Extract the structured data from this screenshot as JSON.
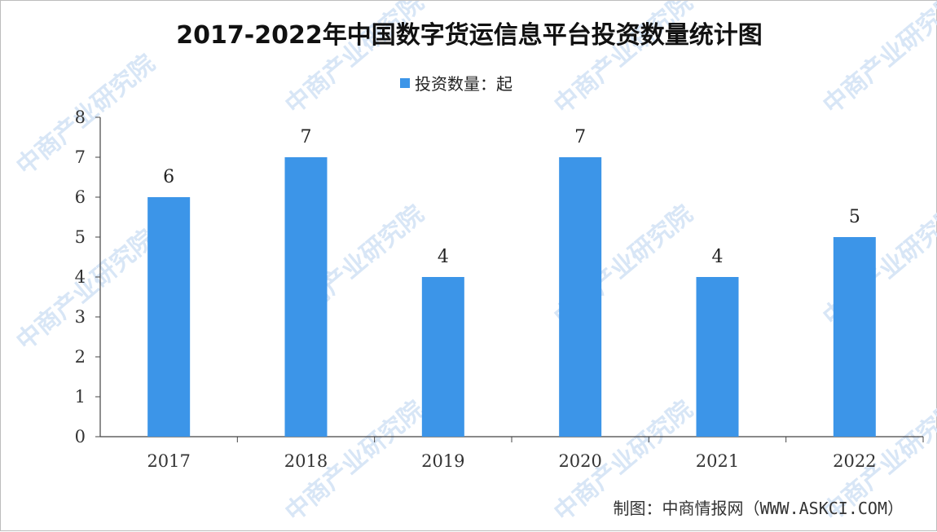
{
  "chart_data": {
    "type": "bar",
    "title": "2017-2022年中国数字货运信息平台投资数量统计图",
    "categories": [
      "2017",
      "2018",
      "2019",
      "2020",
      "2021",
      "2022"
    ],
    "series": [
      {
        "name": "投资数量：起",
        "values": [
          6,
          7,
          4,
          7,
          4,
          5
        ]
      }
    ],
    "ylim": [
      0,
      8
    ],
    "yticks": [
      "0",
      "1",
      "2",
      "3",
      "4",
      "5",
      "6",
      "7",
      "8"
    ],
    "xlabel": "",
    "ylabel": "",
    "grid": false,
    "legend_position": "top-center",
    "bar_color": "#3c95e8",
    "source": "制图：中商情报网（WWW.ASKCI.COM）"
  },
  "watermark": {
    "text": "中商产业研究院",
    "color": "#d8e6f6"
  }
}
